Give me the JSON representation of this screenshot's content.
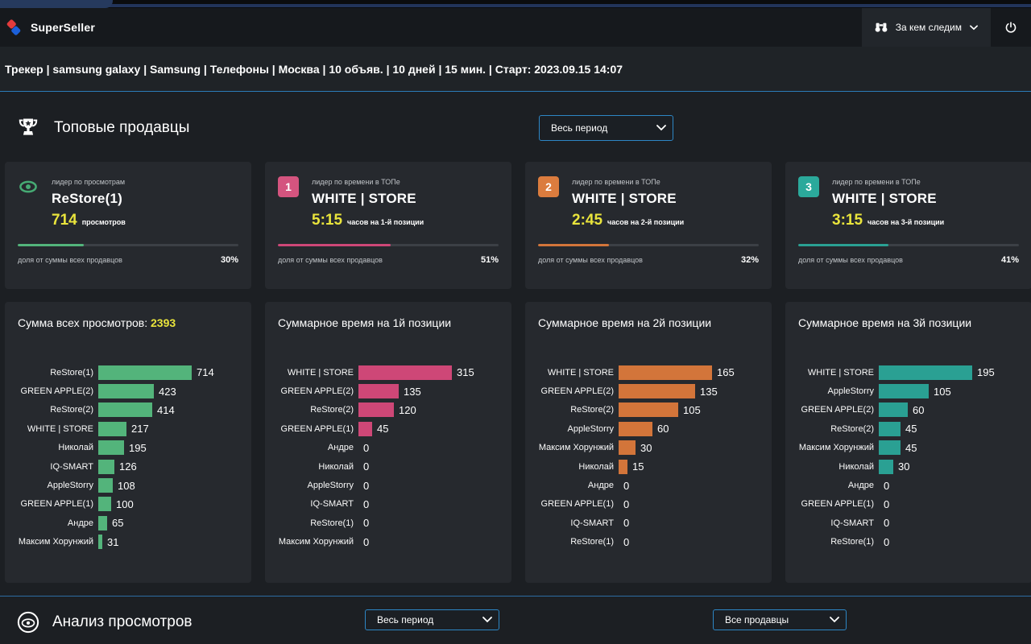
{
  "header": {
    "brand": "SuperSeller",
    "watch_menu": {
      "label": "За кем следим",
      "icon": "binoculars-icon"
    },
    "power_icon": "power-icon"
  },
  "breadcrumb": {
    "text": "Трекер | samsung galaxy | Samsung | Телефоны | Москва | 10 объяв. | 10 дней | 15 мин. | Старт: 2023.09.15 14:07"
  },
  "top_sellers": {
    "icon": "trophy-icon",
    "title": "Топовые продавцы",
    "period_select": {
      "value": "Весь период"
    },
    "cards": [
      {
        "badge": "eye",
        "badge_color": "#46ab74",
        "label": "лидер по просмотрам",
        "name": "ReStore(1)",
        "value": "714",
        "value_suffix": "просмотров",
        "share_label": "доля от суммы всех продавцов",
        "share_text": "30%",
        "share_pct": 30,
        "accent": "#53b47b"
      },
      {
        "badge": "1",
        "badge_color": "#d4547f",
        "label": "лидер по времени в ТОПе",
        "name": "WHITE | STORE",
        "value": "5:15",
        "value_suffix": "часов на 1-й позиции",
        "share_label": "доля от суммы всех продавцов",
        "share_text": "51%",
        "share_pct": 51,
        "accent": "#ce4777"
      },
      {
        "badge": "2",
        "badge_color": "#db7c3e",
        "label": "лидер по времени в ТОПе",
        "name": "WHITE | STORE",
        "value": "2:45",
        "value_suffix": "часов на 2-й позиции",
        "share_label": "доля от суммы всех продавцов",
        "share_text": "32%",
        "share_pct": 32,
        "accent": "#d3753a"
      },
      {
        "badge": "3",
        "badge_color": "#2ba99b",
        "label": "лидер по времени в ТОПе",
        "name": "WHITE | STORE",
        "value": "3:15",
        "value_suffix": "часов на 3-й позиции",
        "share_label": "доля от суммы всех продавцов",
        "share_text": "41%",
        "share_pct": 41,
        "accent": "#2aa093"
      }
    ]
  },
  "chart_data": [
    {
      "type": "bar",
      "orientation": "horizontal",
      "title": "Сумма всех просмотров:",
      "total": "2393",
      "color": "#53b47b",
      "categories": [
        "ReStore(1)",
        "GREEN APPLE(2)",
        "ReStore(2)",
        "WHITE | STORE",
        "Николай",
        "IQ-SMART",
        "AppleStorry",
        "GREEN APPLE(1)",
        "Андре",
        "Максим Хорунжий"
      ],
      "values": [
        714,
        423,
        414,
        217,
        195,
        126,
        108,
        100,
        65,
        31
      ]
    },
    {
      "type": "bar",
      "orientation": "horizontal",
      "title": "Суммарное время на 1й позиции",
      "total": null,
      "color": "#ce4777",
      "categories": [
        "WHITE | STORE",
        "GREEN APPLE(2)",
        "ReStore(2)",
        "GREEN APPLE(1)",
        "Андре",
        "Николай",
        "AppleStorry",
        "IQ-SMART",
        "ReStore(1)",
        "Максим Хорунжий"
      ],
      "values": [
        315,
        135,
        120,
        45,
        0,
        0,
        0,
        0,
        0,
        0
      ]
    },
    {
      "type": "bar",
      "orientation": "horizontal",
      "title": "Суммарное время на 2й позиции",
      "total": null,
      "color": "#d3753a",
      "categories": [
        "WHITE | STORE",
        "GREEN APPLE(2)",
        "ReStore(2)",
        "AppleStorry",
        "Максим Хорунжий",
        "Николай",
        "Андре",
        "GREEN APPLE(1)",
        "IQ-SMART",
        "ReStore(1)"
      ],
      "values": [
        165,
        135,
        105,
        60,
        30,
        15,
        0,
        0,
        0,
        0
      ]
    },
    {
      "type": "bar",
      "orientation": "horizontal",
      "title": "Суммарное время на 3й позиции",
      "total": null,
      "color": "#2aa093",
      "categories": [
        "WHITE | STORE",
        "AppleStorry",
        "GREEN APPLE(2)",
        "ReStore(2)",
        "Максим Хорунжий",
        "Николай",
        "Андре",
        "GREEN APPLE(1)",
        "IQ-SMART",
        "ReStore(1)"
      ],
      "values": [
        195,
        105,
        60,
        45,
        45,
        30,
        0,
        0,
        0,
        0
      ]
    }
  ],
  "views_analysis": {
    "icon": "eye-circle-icon",
    "title": "Анализ просмотров",
    "period_select": {
      "value": "Весь период"
    },
    "sellers_select": {
      "value": "Все продавцы"
    }
  }
}
